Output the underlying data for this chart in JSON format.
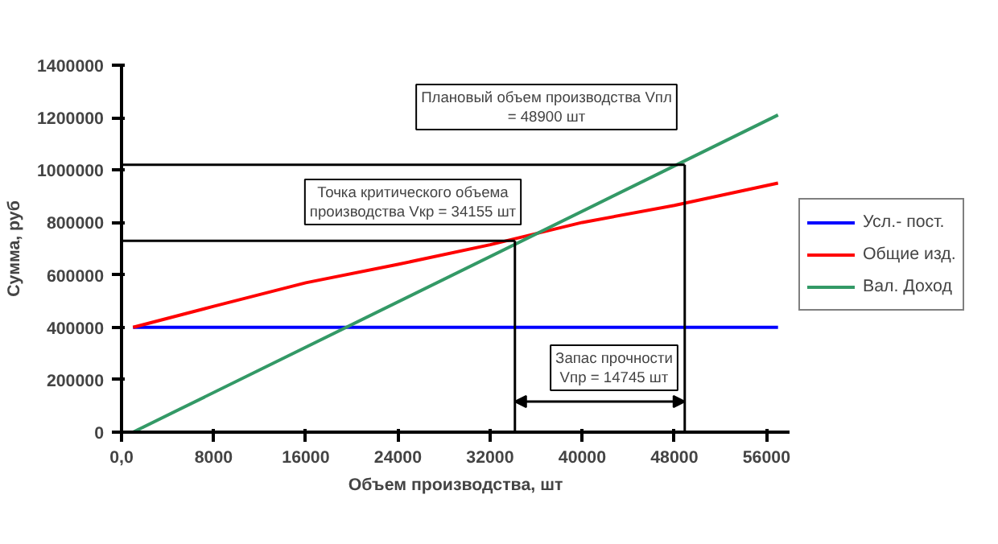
{
  "chart_data": {
    "type": "line",
    "xlabel": "Объем производства, шт",
    "ylabel": "Сумма, руб",
    "xlim": [
      0,
      58000
    ],
    "ylim": [
      0,
      1400000
    ],
    "xticks": [
      {
        "value": 0,
        "label": "0,0"
      },
      8000,
      16000,
      24000,
      32000,
      40000,
      48000,
      56000
    ],
    "yticks": [
      0,
      200000,
      400000,
      600000,
      800000,
      1000000,
      1200000,
      1400000
    ],
    "grid": false,
    "legend": "right",
    "marker": "none",
    "series": [
      {
        "name": "Усл.- пост.",
        "color": "#0000ff",
        "x": [
          1000,
          57000
        ],
        "values": [
          400000,
          400000
        ]
      },
      {
        "name": "Общие изд.",
        "color": "#ff0000",
        "x": [
          1000,
          8000,
          16000,
          24000,
          32000,
          40000,
          48000,
          57000
        ],
        "values": [
          400000,
          480000,
          570000,
          640000,
          715000,
          800000,
          865000,
          950000
        ]
      },
      {
        "name": "Вал. Доход",
        "color": "#339966",
        "x": [
          1000,
          57000
        ],
        "values": [
          0,
          1210000
        ]
      },
      {
        "color": "#000000",
        "x": [
          0,
          34155
        ],
        "values": [
          730000,
          730000
        ]
      },
      {
        "color": "#000000",
        "x": [
          0,
          48900
        ],
        "values": [
          1020000,
          1020000
        ]
      },
      {
        "color": "#000000",
        "x": [
          34155,
          34155
        ],
        "values": [
          0,
          730000
        ]
      },
      {
        "color": "#000000",
        "x": [
          48900,
          48900
        ],
        "values": [
          0,
          1020000
        ]
      }
    ],
    "annotations": [
      "Плановый объем производства Vпл\n= 48900 шт",
      "Точка критического объема\nпроизводства Vкр = 34155 шт",
      "Запас прочности\nVпр = 14745 шт"
    ]
  }
}
